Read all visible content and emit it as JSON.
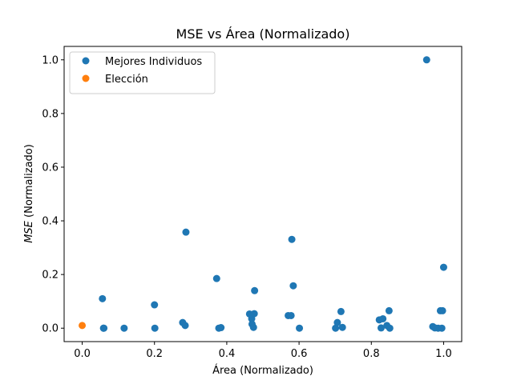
{
  "chart_data": {
    "type": "scatter",
    "title": "MSE vs Área (Normalizado)",
    "xlabel": "Área (Normalizado)",
    "ylabel_main": "MSE",
    "ylabel_rest": " (Normalizado)",
    "xlim": [
      -0.05,
      1.05
    ],
    "ylim": [
      -0.05,
      1.05
    ],
    "xticks": [
      0.0,
      0.2,
      0.4,
      0.6,
      0.8,
      1.0
    ],
    "xtick_labels": [
      "0.0",
      "0.2",
      "0.4",
      "0.6",
      "0.8",
      "1.0"
    ],
    "yticks": [
      0.0,
      0.2,
      0.4,
      0.6,
      0.8,
      1.0
    ],
    "ytick_labels": [
      "0.0",
      "0.2",
      "0.4",
      "0.6",
      "0.8",
      "1.0"
    ],
    "grid": false,
    "legend_position": "top-left",
    "series": [
      {
        "name": "Mejores Individuos",
        "color": "#1f77b4",
        "points": [
          [
            0.056,
            0.11
          ],
          [
            0.059,
            0.0
          ],
          [
            0.06,
            0.0
          ],
          [
            0.116,
            0.0
          ],
          [
            0.2,
            0.087
          ],
          [
            0.201,
            0.0
          ],
          [
            0.278,
            0.021
          ],
          [
            0.285,
            0.01
          ],
          [
            0.287,
            0.358
          ],
          [
            0.372,
            0.185
          ],
          [
            0.378,
            0.0
          ],
          [
            0.384,
            0.002
          ],
          [
            0.463,
            0.053
          ],
          [
            0.469,
            0.035
          ],
          [
            0.47,
            0.015
          ],
          [
            0.474,
            0.003
          ],
          [
            0.476,
            0.054
          ],
          [
            0.477,
            0.14
          ],
          [
            0.57,
            0.047
          ],
          [
            0.578,
            0.047
          ],
          [
            0.58,
            0.331
          ],
          [
            0.584,
            0.158
          ],
          [
            0.601,
            0.0
          ],
          [
            0.701,
            0.0
          ],
          [
            0.706,
            0.021
          ],
          [
            0.716,
            0.062
          ],
          [
            0.72,
            0.003
          ],
          [
            0.822,
            0.031
          ],
          [
            0.827,
            0.001
          ],
          [
            0.832,
            0.035
          ],
          [
            0.843,
            0.01
          ],
          [
            0.849,
            0.065
          ],
          [
            0.851,
            0.0
          ],
          [
            0.953,
            1.0
          ],
          [
            0.97,
            0.006
          ],
          [
            0.976,
            0.001
          ],
          [
            0.985,
            0.0
          ],
          [
            0.991,
            0.065
          ],
          [
            0.995,
            0.0
          ],
          [
            0.997,
            0.065
          ],
          [
            1.0,
            0.227
          ]
        ]
      },
      {
        "name": "Elección",
        "color": "#ff7f0e",
        "points": [
          [
            0.0,
            0.01
          ]
        ]
      }
    ]
  }
}
